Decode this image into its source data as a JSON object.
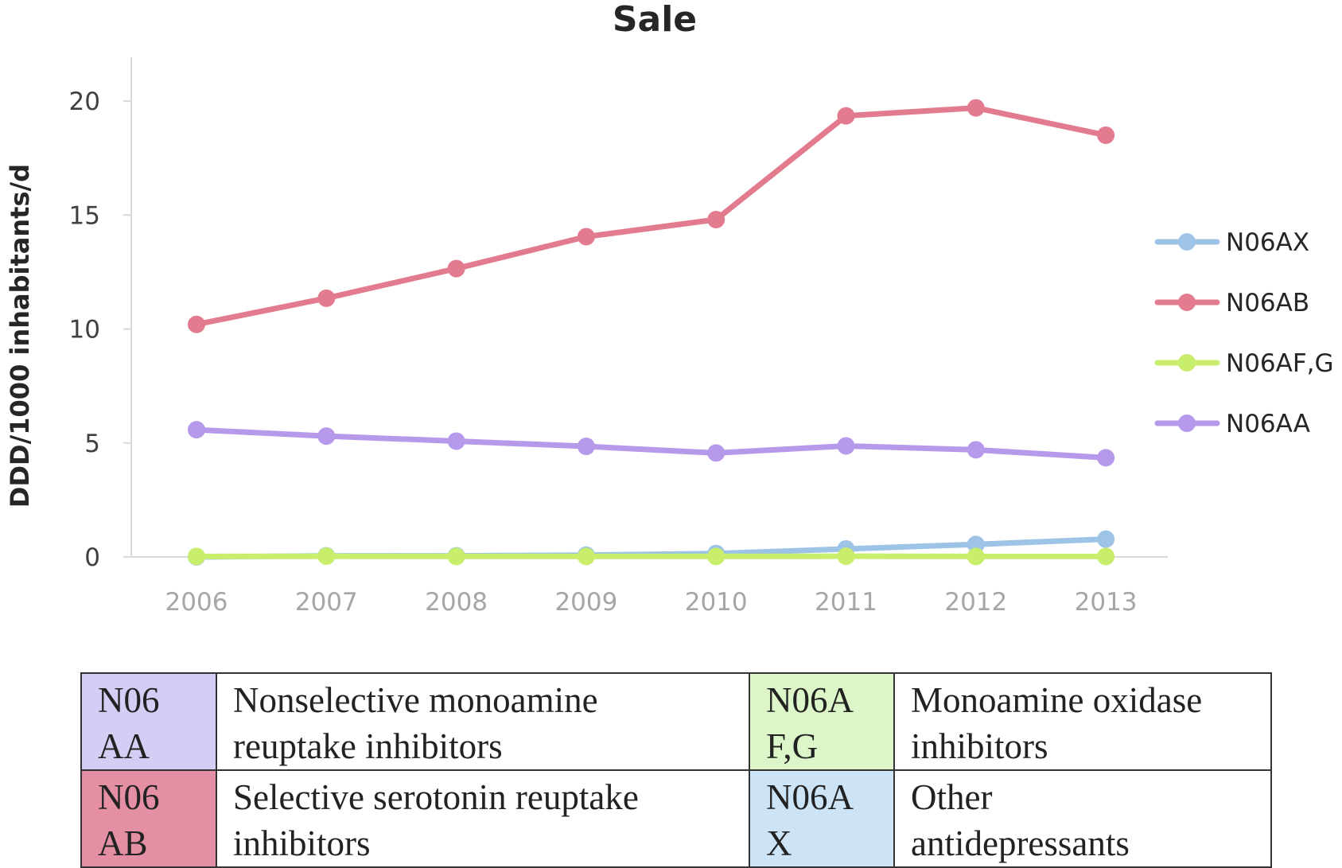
{
  "chart_data": {
    "type": "line",
    "title": "Sale",
    "ylabel": "DDD/1000 inhabitants/d",
    "xlabel": "",
    "x": [
      "2006",
      "2007",
      "2008",
      "2009",
      "2010",
      "2011",
      "2012",
      "2013"
    ],
    "ylim": [
      0,
      20
    ],
    "yticks": [
      "0",
      "5",
      "10",
      "15",
      "20"
    ],
    "grid": false,
    "legend_position": "right",
    "series": [
      {
        "name": "N06AX",
        "color": "#9dc3e6",
        "values": [
          0.0,
          0.05,
          0.05,
          0.08,
          0.15,
          0.35,
          0.55,
          0.78
        ]
      },
      {
        "name": "N06AB",
        "color": "#e37b8f",
        "values": [
          10.2,
          11.35,
          12.65,
          14.05,
          14.8,
          19.35,
          19.7,
          18.5
        ]
      },
      {
        "name": "N06AF,G",
        "color": "#c9ee6b",
        "values": [
          0.02,
          0.03,
          0.02,
          0.02,
          0.02,
          0.03,
          0.02,
          0.02
        ]
      },
      {
        "name": "N06AA",
        "color": "#b699ea",
        "values": [
          5.58,
          5.3,
          5.08,
          4.85,
          4.56,
          4.87,
          4.7,
          4.35
        ]
      }
    ]
  },
  "legend_table": {
    "rows": [
      [
        {
          "code": "N06\nAA",
          "color": "#d4cdf4",
          "desc": "Nonselective monoamine\nreuptake inhibitors"
        },
        {
          "code": "N06A\nF,G",
          "color": "#ddf6c9",
          "desc": "Monoamine oxidase\ninhibitors"
        }
      ],
      [
        {
          "code": "N06\nAB",
          "color": "#e48fa3",
          "desc": "Selective serotonin reuptake\ninhibitors"
        },
        {
          "code": "N06A\nX",
          "color": "#cde4f7",
          "desc": "Other\nantidepressants"
        }
      ]
    ]
  }
}
